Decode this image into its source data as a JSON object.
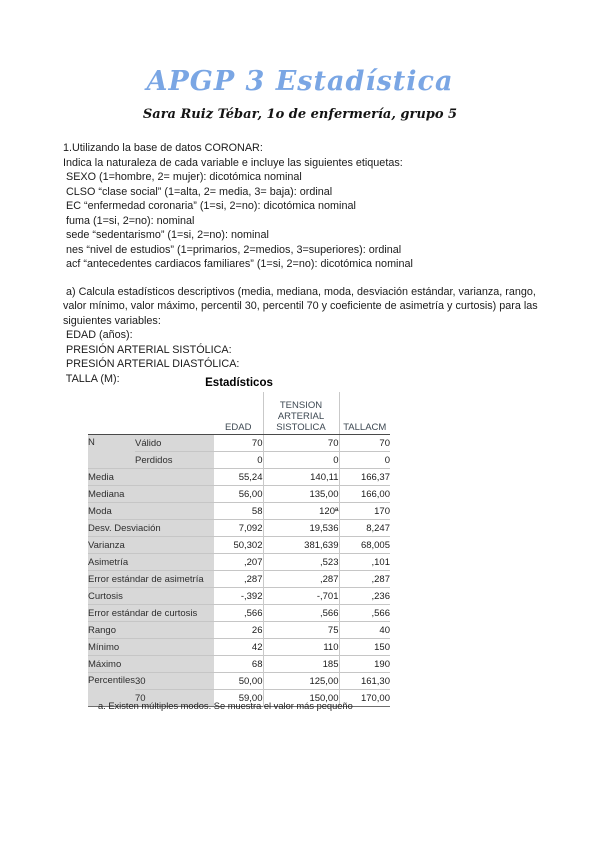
{
  "header": {
    "title": "APGP 3 Estadística",
    "subtitle": "Sara Ruiz Tébar, 1o de enfermería, grupo 5"
  },
  "intro": {
    "lines": [
      "1.Utilizando la base de datos CORONAR:",
      "Indica la naturaleza de cada variable e incluye las siguientes etiquetas:",
      " SEXO (1=hombre, 2= mujer): dicotómica nominal",
      " CLSO “clase social” (1=alta, 2= media, 3= baja): ordinal",
      " EC “enfermedad coronaria” (1=si, 2=no): dicotómica nominal",
      " fuma (1=si, 2=no): nominal",
      " sede “sedentarismo” (1=si, 2=no): nominal",
      " nes “nivel de estudios” (1=primarios, 2=medios, 3=superiores): ordinal",
      " acf “antecedentes cardiacos familiares” (1=si, 2=no): dicotómica nominal"
    ]
  },
  "section_a": {
    "lines": [
      " a) Calcula estadísticos descriptivos (media, mediana, moda, desviación estándar, varianza, rango,",
      "valor mínimo, valor máximo, percentil 30, percentil 70 y coeficiente de asimetría y curtosis) para las",
      "siguientes variables:",
      " EDAD (años):",
      " PRESIÓN ARTERIAL SISTÓLICA:",
      " PRESIÓN ARTERIAL DIASTÓLICA:",
      " TALLA (M):"
    ]
  },
  "table": {
    "title": "Estadísticos",
    "columns": [
      "EDAD",
      "TENSION ARTERIAL SISTOLICA",
      "TALLACM"
    ],
    "rows": [
      {
        "label": "N",
        "subrows": [
          {
            "sublabel": "Válido",
            "values": [
              "70",
              "70",
              "70"
            ]
          },
          {
            "sublabel": "Perdidos",
            "values": [
              "0",
              "0",
              "0"
            ]
          }
        ]
      },
      {
        "label": "Media",
        "values": [
          "55,24",
          "140,11",
          "166,37"
        ]
      },
      {
        "label": "Mediana",
        "values": [
          "56,00",
          "135,00",
          "166,00"
        ]
      },
      {
        "label": "Moda",
        "values": [
          "58",
          "120ª",
          "170"
        ]
      },
      {
        "label": "Desv. Desviación",
        "values": [
          "7,092",
          "19,536",
          "8,247"
        ]
      },
      {
        "label": "Varianza",
        "values": [
          "50,302",
          "381,639",
          "68,005"
        ]
      },
      {
        "label": "Asimetría",
        "values": [
          ",207",
          ",523",
          ",101"
        ]
      },
      {
        "label": "Error estándar de asimetría",
        "values": [
          ",287",
          ",287",
          ",287"
        ]
      },
      {
        "label": "Curtosis",
        "values": [
          "-,392",
          "-,701",
          ",236"
        ]
      },
      {
        "label": "Error estándar de curtosis",
        "values": [
          ",566",
          ",566",
          ",566"
        ]
      },
      {
        "label": "Rango",
        "values": [
          "26",
          "75",
          "40"
        ]
      },
      {
        "label": "Mínimo",
        "values": [
          "42",
          "110",
          "150"
        ]
      },
      {
        "label": "Máximo",
        "values": [
          "68",
          "185",
          "190"
        ]
      },
      {
        "label": "Percentiles",
        "subrows": [
          {
            "sublabel": "30",
            "values": [
              "50,00",
              "125,00",
              "161,30"
            ]
          },
          {
            "sublabel": "70",
            "values": [
              "59,00",
              "150,00",
              "170,00"
            ]
          }
        ]
      }
    ],
    "footnote": "a. Existen múltiples modos. Se muestra el valor más pequeño",
    "colors": {
      "label_bg": "#d8d8d8",
      "title_blue": "#7aa6e4"
    }
  }
}
